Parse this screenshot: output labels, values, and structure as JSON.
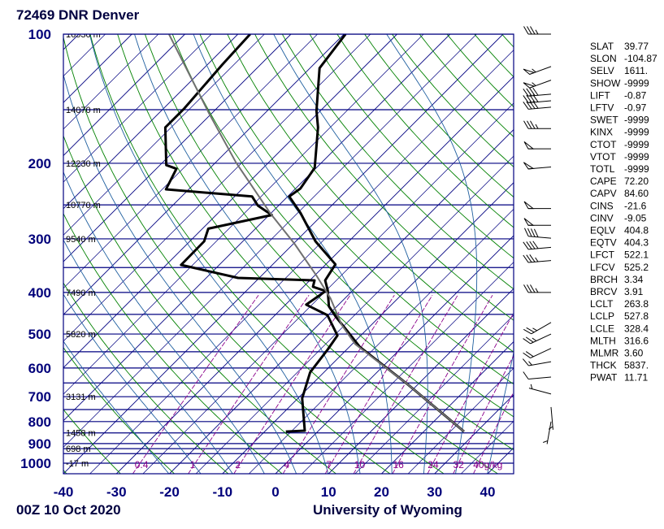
{
  "title": "72469 DNR Denver",
  "footer_left": "00Z 10 Oct 2020",
  "footer_center": "University of Wyoming",
  "colors": {
    "frame": "#000080",
    "isotherm": "#000080",
    "dry_adiabat": "#008000",
    "moist_adiabat": "#1f5f9f",
    "mixing_ratio": "#8b008b",
    "temperature": "#000000",
    "dewpoint": "#000000",
    "parcel": "#707070"
  },
  "chart_data": {
    "type": "line",
    "subtype": "skew-t log-p",
    "xlabel": "",
    "ylabel": "",
    "x_ticks": [
      "-40",
      "-30",
      "-20",
      "-10",
      "0",
      "10",
      "20",
      "30",
      "40"
    ],
    "y_ticks": [
      "100",
      "200",
      "300",
      "400",
      "500",
      "600",
      "700",
      "800",
      "900",
      "1000"
    ],
    "x_range_degC": [
      -40,
      45
    ],
    "y_range_hpa": [
      1050,
      100
    ],
    "y_scale": "log",
    "grid": true,
    "isobars_hpa": [
      100,
      150,
      200,
      250,
      300,
      350,
      400,
      450,
      500,
      550,
      600,
      650,
      700,
      750,
      800,
      850,
      900,
      925,
      950,
      1000
    ],
    "height_labels": [
      {
        "p": 100,
        "label": "16530 m"
      },
      {
        "p": 150,
        "label": "14070 m"
      },
      {
        "p": 200,
        "label": "12230 m"
      },
      {
        "p": 250,
        "label": "10770 m"
      },
      {
        "p": 300,
        "label": "9540 m"
      },
      {
        "p": 400,
        "label": "7490 m"
      },
      {
        "p": 500,
        "label": "5820 m"
      },
      {
        "p": 700,
        "label": "3131 m"
      },
      {
        "p": 850,
        "label": "1458 m"
      },
      {
        "p": 925,
        "label": "698 m"
      },
      {
        "p": 1000,
        "label": "-17 m"
      }
    ],
    "mixing_ratio_lines_gkg": [
      0.4,
      1,
      2,
      4,
      7,
      10,
      16,
      24,
      32,
      40
    ],
    "mixing_ratio_labels": [
      "0.4",
      "1",
      "2",
      "4",
      "7",
      "10",
      "16",
      "24",
      "32",
      "40g/kg"
    ],
    "series": [
      {
        "role": "temperature",
        "points": [
          [
            100,
            -69.7
          ],
          [
            120,
            -68.2
          ],
          [
            151,
            -60.7
          ],
          [
            165,
            -57.3
          ],
          [
            205,
            -50.3
          ],
          [
            229,
            -49.1
          ],
          [
            239,
            -49.7
          ],
          [
            261,
            -44.5
          ],
          [
            304,
            -36.3
          ],
          [
            344,
            -28.2
          ],
          [
            375,
            -27.1
          ],
          [
            395,
            -24.8
          ],
          [
            431,
            -21.5
          ],
          [
            456,
            -18.2
          ],
          [
            491,
            -13.5
          ],
          [
            536,
            -8.0
          ],
          [
            652,
            7.7
          ],
          [
            844,
            27.6
          ]
        ]
      },
      {
        "role": "dewpoint",
        "points": [
          [
            100,
            -87.7
          ],
          [
            118,
            -87.2
          ],
          [
            149,
            -86.1
          ],
          [
            165,
            -86.1
          ],
          [
            202,
            -78.8
          ],
          [
            206,
            -76.2
          ],
          [
            230,
            -74.3
          ],
          [
            239,
            -56.7
          ],
          [
            251,
            -53.9
          ],
          [
            264,
            -49.5
          ],
          [
            284,
            -58.9
          ],
          [
            304,
            -57.3
          ],
          [
            345,
            -57.2
          ],
          [
            370,
            -44.0
          ],
          [
            375,
            -29.1
          ],
          [
            388,
            -28.2
          ],
          [
            397,
            -25.0
          ],
          [
            427,
            -26.1
          ],
          [
            452,
            -20.1
          ],
          [
            504,
            -14.4
          ],
          [
            543,
            -13.6
          ],
          [
            614,
            -12.6
          ],
          [
            706,
            -9.2
          ],
          [
            840,
            -2.6
          ],
          [
            844,
            -6.0
          ]
        ]
      },
      {
        "role": "parcel",
        "points": [
          [
            100,
            -103.0
          ],
          [
            153,
            -80.5
          ],
          [
            199,
            -66.2
          ],
          [
            262,
            -50.0
          ],
          [
            308,
            -39.8
          ],
          [
            367,
            -29.4
          ],
          [
            413,
            -22.7
          ],
          [
            476,
            -15.6
          ],
          [
            515,
            -10.9
          ],
          [
            528,
            -9.4
          ],
          [
            652,
            7.7
          ],
          [
            844,
            27.6
          ]
        ]
      }
    ],
    "wind_barbs": [
      [
        100,
        270,
        35
      ],
      [
        119,
        250,
        55
      ],
      [
        128,
        250,
        55
      ],
      [
        138,
        265,
        40
      ],
      [
        143,
        265,
        40
      ],
      [
        148,
        265,
        40
      ],
      [
        166,
        270,
        35
      ],
      [
        185,
        270,
        50
      ],
      [
        204,
        265,
        50
      ],
      [
        255,
        270,
        50
      ],
      [
        279,
        270,
        50
      ],
      [
        299,
        275,
        40
      ],
      [
        314,
        265,
        40
      ],
      [
        337,
        265,
        35
      ],
      [
        400,
        270,
        35
      ],
      [
        470,
        240,
        25
      ],
      [
        500,
        245,
        25
      ],
      [
        540,
        245,
        20
      ],
      [
        580,
        260,
        15
      ],
      [
        630,
        265,
        10
      ],
      [
        690,
        285,
        5
      ],
      [
        740,
        175,
        5
      ],
      [
        800,
        190,
        5
      ]
    ]
  },
  "stats": [
    {
      "label": "SLAT",
      "value": "39.77"
    },
    {
      "label": "SLON",
      "value": "-104.87"
    },
    {
      "label": "SELV",
      "value": "1611."
    },
    {
      "label": "SHOW",
      "value": "-9999"
    },
    {
      "label": "LIFT",
      "value": "-0.87"
    },
    {
      "label": "LFTV",
      "value": "-0.97"
    },
    {
      "label": "SWET",
      "value": "-9999"
    },
    {
      "label": "KINX",
      "value": "-9999"
    },
    {
      "label": "CTOT",
      "value": "-9999"
    },
    {
      "label": "VTOT",
      "value": "-9999"
    },
    {
      "label": "TOTL",
      "value": "-9999"
    },
    {
      "label": "CAPE",
      "value": "72.20"
    },
    {
      "label": "CAPV",
      "value": "84.60"
    },
    {
      "label": "CINS",
      "value": "-21.6"
    },
    {
      "label": "CINV",
      "value": "-9.05"
    },
    {
      "label": "EQLV",
      "value": "404.8"
    },
    {
      "label": "EQTV",
      "value": "404.3"
    },
    {
      "label": "LFCT",
      "value": "522.1"
    },
    {
      "label": "LFCV",
      "value": "525.2"
    },
    {
      "label": "BRCH",
      "value": "3.34"
    },
    {
      "label": "BRCV",
      "value": "3.91"
    },
    {
      "label": "LCLT",
      "value": "263.8"
    },
    {
      "label": "LCLP",
      "value": "527.8"
    },
    {
      "label": "LCLE",
      "value": "328.4"
    },
    {
      "label": "MLTH",
      "value": "316.6"
    },
    {
      "label": "MLMR",
      "value": "3.60"
    },
    {
      "label": "THCK",
      "value": "5837."
    },
    {
      "label": "PWAT",
      "value": "11.71"
    }
  ]
}
